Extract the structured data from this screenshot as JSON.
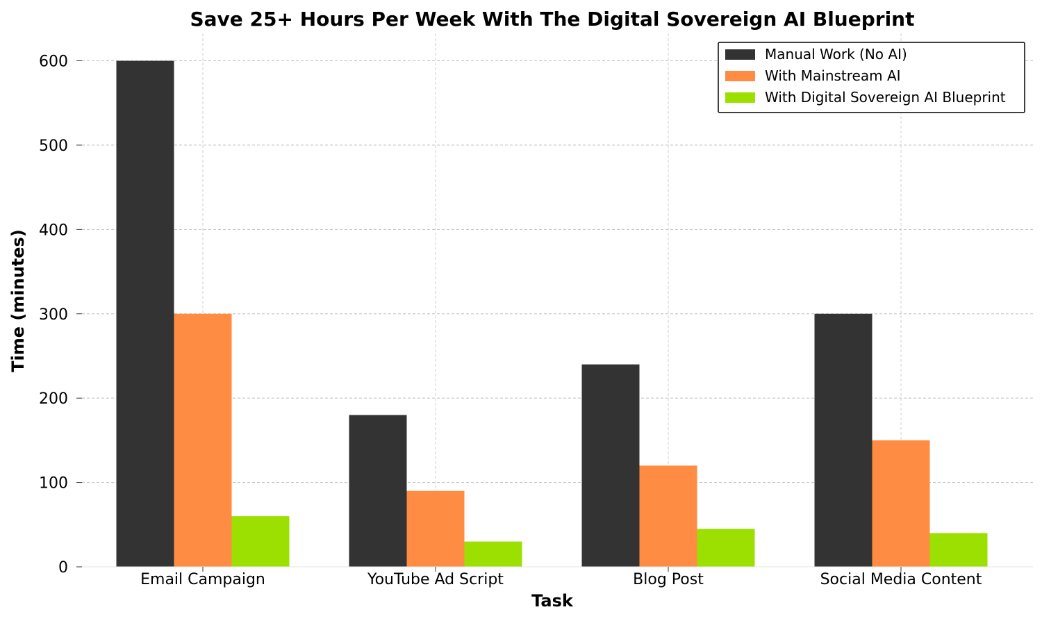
{
  "chart_data": {
    "type": "bar",
    "title": "Save 25+ Hours Per Week With The Digital Sovereign AI Blueprint",
    "xlabel": "Task",
    "ylabel": "Time (minutes)",
    "categories": [
      "Email Campaign",
      "YouTube Ad Script",
      "Blog Post",
      "Social Media Content"
    ],
    "series": [
      {
        "name": "Manual Work (No AI)",
        "color": "#333333",
        "values": [
          600,
          180,
          240,
          300
        ]
      },
      {
        "name": "With Mainstream AI",
        "color": "#ff8c42",
        "values": [
          300,
          90,
          120,
          150
        ]
      },
      {
        "name": "With Digital Sovereign AI Blueprint",
        "color": "#9be000",
        "values": [
          60,
          30,
          45,
          40
        ]
      }
    ],
    "ylim": [
      0,
      630
    ],
    "yticks": [
      0,
      100,
      200,
      300,
      400,
      500,
      600
    ],
    "grid": true,
    "legend_position": "top-right"
  }
}
